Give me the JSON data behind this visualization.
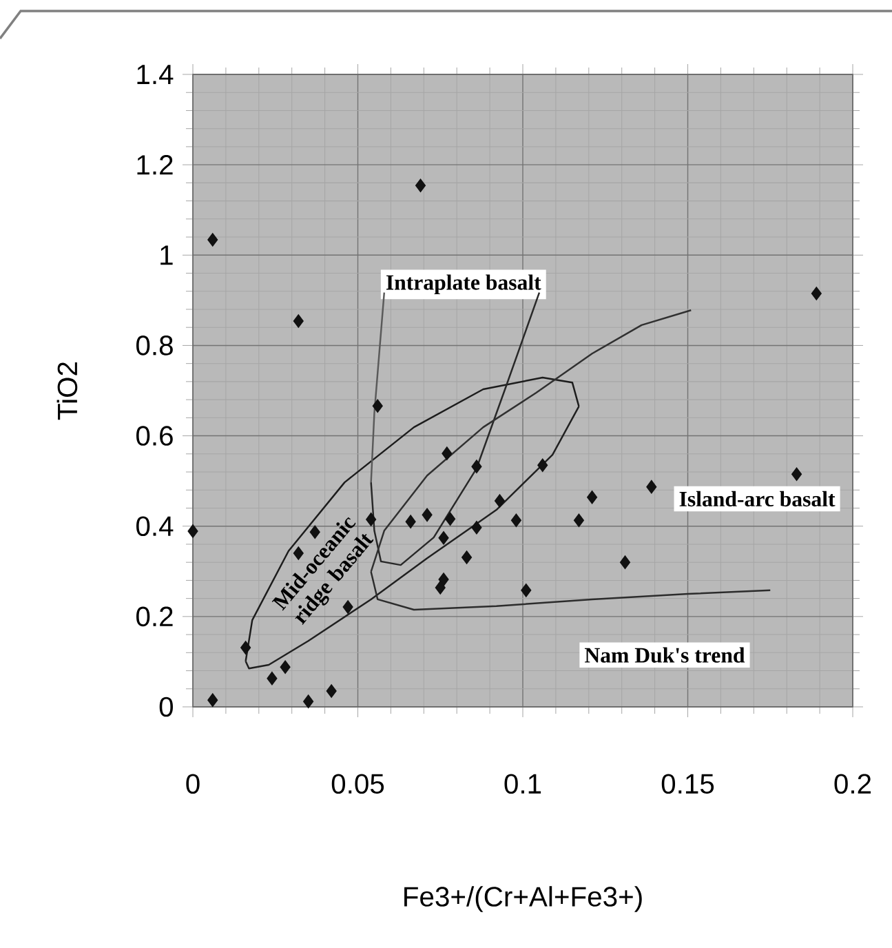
{
  "chart_data": {
    "type": "scatter",
    "xlabel": "Fe3+/(Cr+Al+Fe3+)",
    "ylabel": "TiO2",
    "xlim": [
      0,
      0.2
    ],
    "ylim": [
      0,
      1.4
    ],
    "xticks": [
      0,
      0.05,
      0.1,
      0.15,
      0.2
    ],
    "yticks": [
      0,
      0.2,
      0.4,
      0.6,
      0.8,
      1,
      1.2,
      1.4
    ],
    "grid": true,
    "series": [
      {
        "color": "#111111",
        "marker": "diamond",
        "x": [
          0.006,
          0.006,
          0.0,
          0.032,
          0.069,
          0.189,
          0.056,
          0.037,
          0.032,
          0.016,
          0.024,
          0.028,
          0.035,
          0.042,
          0.047,
          0.054,
          0.066,
          0.071,
          0.077,
          0.078,
          0.076,
          0.076,
          0.075,
          0.083,
          0.086,
          0.086,
          0.093,
          0.098,
          0.101,
          0.106,
          0.117,
          0.121,
          0.131,
          0.139,
          0.183
        ],
        "values": [
          0.015,
          1.034,
          0.389,
          0.854,
          1.154,
          0.915,
          0.666,
          0.387,
          0.34,
          0.131,
          0.063,
          0.088,
          0.012,
          0.035,
          0.221,
          0.415,
          0.41,
          0.425,
          0.561,
          0.416,
          0.374,
          0.282,
          0.264,
          0.331,
          0.532,
          0.397,
          0.456,
          0.413,
          0.258,
          0.535,
          0.413,
          0.464,
          0.32,
          0.487,
          0.515
        ]
      },
      {
        "type": "line",
        "color": "#1c1c1c",
        "marker": "none",
        "line_style": "solid",
        "x": [
          0.016,
          0.018,
          0.029,
          0.046,
          0.067,
          0.088,
          0.106,
          0.115,
          0.117
        ],
        "values": [
          0.101,
          0.192,
          0.345,
          0.497,
          0.619,
          0.703,
          0.729,
          0.718,
          0.665
        ]
      },
      {
        "type": "line",
        "color": "#202020",
        "marker": "none",
        "line_style": "solid",
        "x": [
          0.016,
          0.017,
          0.023,
          0.035,
          0.054,
          0.071,
          0.092,
          0.109,
          0.117
        ],
        "values": [
          0.101,
          0.085,
          0.093,
          0.146,
          0.238,
          0.329,
          0.436,
          0.558,
          0.665
        ]
      },
      {
        "type": "line",
        "color": "#5a5a5a",
        "marker": "none",
        "line_style": "solid",
        "x": [
          0.054,
          0.055,
          0.058
        ],
        "values": [
          0.497,
          0.65,
          0.917
        ]
      },
      {
        "type": "line",
        "color": "#282828",
        "marker": "none",
        "line_style": "solid",
        "x": [
          0.054,
          0.055,
          0.057,
          0.063,
          0.073,
          0.086,
          0.095,
          0.105
        ],
        "values": [
          0.497,
          0.39,
          0.322,
          0.314,
          0.375,
          0.528,
          0.711,
          0.917
        ]
      },
      {
        "type": "line",
        "color": "#2c2c2c",
        "marker": "none",
        "line_style": "solid",
        "x": [
          0.054,
          0.056,
          0.067,
          0.092,
          0.121,
          0.15,
          0.175
        ],
        "values": [
          0.299,
          0.238,
          0.215,
          0.223,
          0.238,
          0.25,
          0.258
        ]
      },
      {
        "type": "line",
        "color": "#303030",
        "marker": "none",
        "line_style": "solid",
        "x": [
          0.054,
          0.058,
          0.071,
          0.088,
          0.104,
          0.121,
          0.136,
          0.151
        ],
        "values": [
          0.299,
          0.39,
          0.512,
          0.619,
          0.695,
          0.782,
          0.845,
          0.878
        ]
      }
    ],
    "annotations": [
      "Intraplate basalt",
      "Island-arc basalt",
      "Mid-oceanic ridge basalt",
      "Nam Duk's trend"
    ]
  }
}
